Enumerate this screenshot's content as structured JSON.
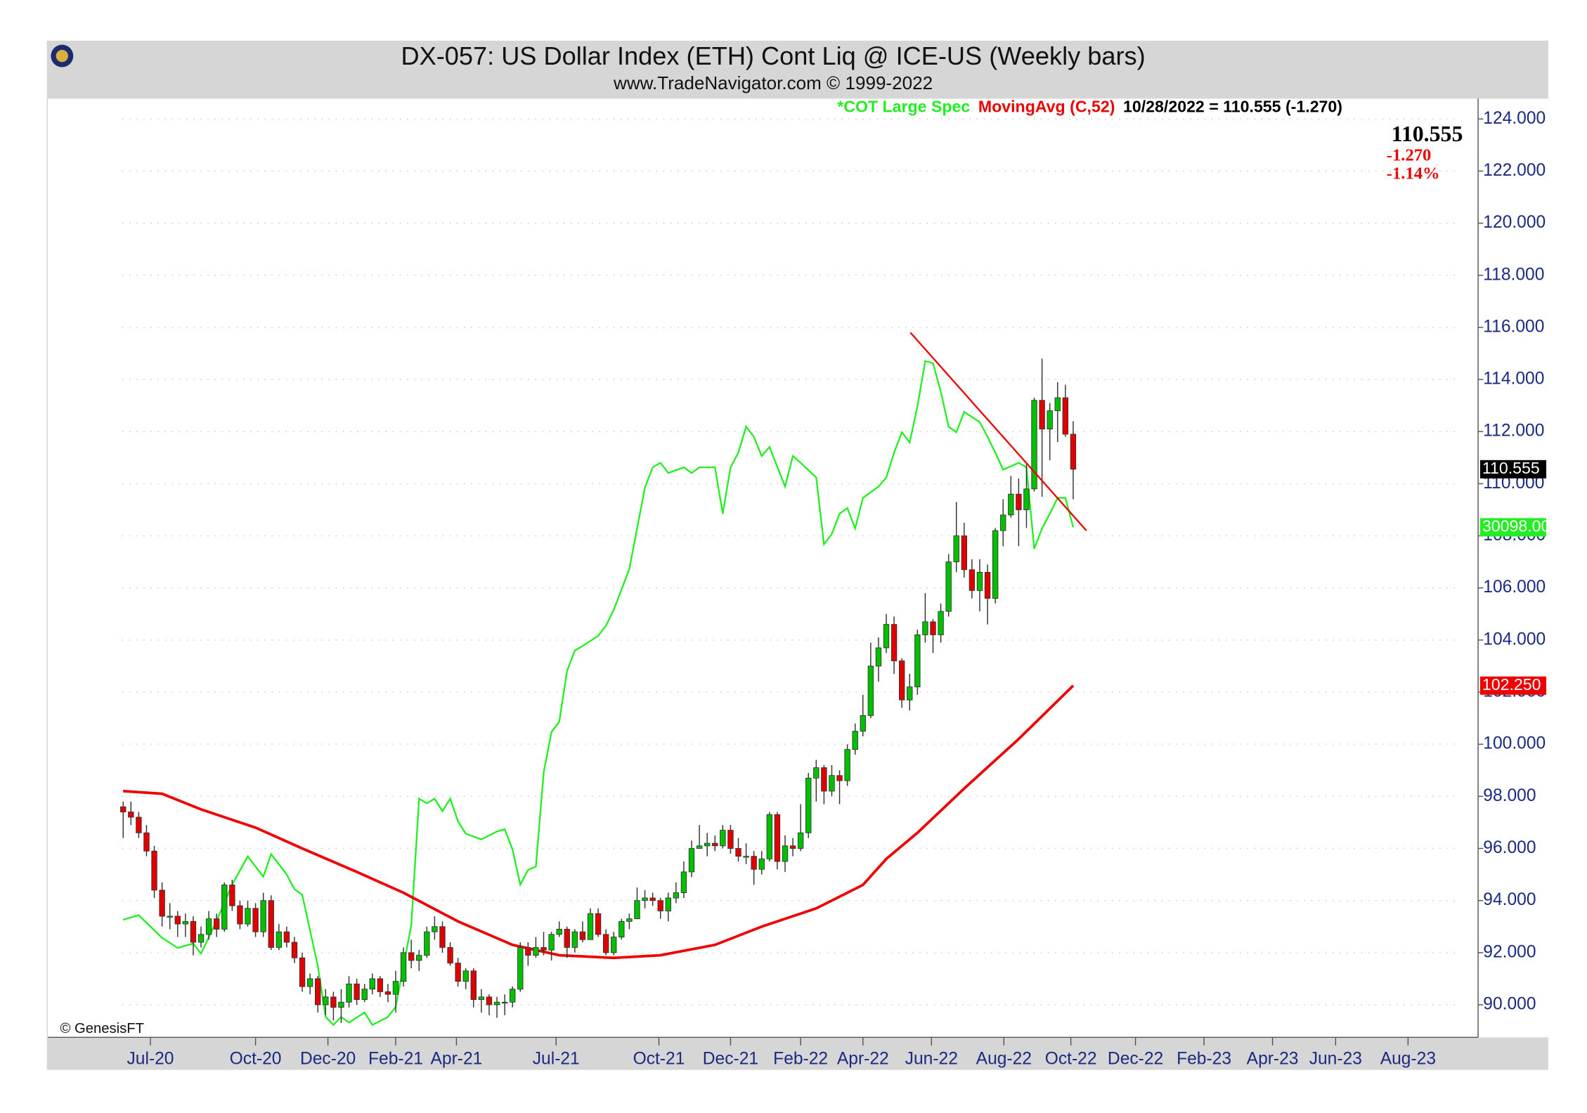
{
  "chart_data": {
    "type": "candlestick",
    "title": "DX-057:  US Dollar Index (ETH) Cont Liq @ ICE-US  (Weekly bars)",
    "subtitle": "www.TradeNavigator.com © 1999-2022",
    "legend_text": "10/28/2022 = 110.555 (-1.270)",
    "info": {
      "last": "110.555",
      "change": "-1.270",
      "percent": "-1.14%"
    },
    "price_boxes": {
      "close": "110.555",
      "cot": "30098.000",
      "ma": "102.250"
    },
    "credit": "© GenesisFT",
    "up_color": "#00c000",
    "down_color": "#e00000",
    "grid": true,
    "xlim": [
      -9.67,
      174
    ],
    "xticks": [
      {
        "value": 3.5,
        "label": "Jul-20"
      },
      {
        "value": 17,
        "label": "Oct-20"
      },
      {
        "value": 26.3,
        "label": "Dec-20"
      },
      {
        "value": 35,
        "label": "Feb-21"
      },
      {
        "value": 42.8,
        "label": "Apr-21"
      },
      {
        "value": 55.6,
        "label": "Jul-21"
      },
      {
        "value": 68.8,
        "label": "Oct-21"
      },
      {
        "value": 78,
        "label": "Dec-21"
      },
      {
        "value": 87,
        "label": "Feb-22"
      },
      {
        "value": 95,
        "label": "Apr-22"
      },
      {
        "value": 103.8,
        "label": "Jun-22"
      },
      {
        "value": 113.1,
        "label": "Aug-22"
      },
      {
        "value": 121.7,
        "label": "Oct-22"
      },
      {
        "value": 130,
        "label": "Dec-22"
      },
      {
        "value": 138.8,
        "label": "Feb-23"
      },
      {
        "value": 147.6,
        "label": "Apr-23"
      },
      {
        "value": 155.7,
        "label": "Jun-23"
      },
      {
        "value": 165,
        "label": "Aug-23"
      }
    ],
    "ylim": [
      88.75,
      124.78
    ],
    "yticks": [
      {
        "value": 90,
        "label": "90.000"
      },
      {
        "value": 92,
        "label": "92.000"
      },
      {
        "value": 94,
        "label": "94.000"
      },
      {
        "value": 96,
        "label": "96.000"
      },
      {
        "value": 98,
        "label": "98.000"
      },
      {
        "value": 100,
        "label": "100.000"
      },
      {
        "value": 102,
        "label": "102.000"
      },
      {
        "value": 104,
        "label": "104.000"
      },
      {
        "value": 106,
        "label": "106.000"
      },
      {
        "value": 108,
        "label": "108.000"
      },
      {
        "value": 110,
        "label": "110.000"
      },
      {
        "value": 112,
        "label": "112.000"
      },
      {
        "value": 114,
        "label": "114.000"
      },
      {
        "value": 116,
        "label": "116.000"
      },
      {
        "value": 118,
        "label": "118.000"
      },
      {
        "value": 120,
        "label": "120.000"
      },
      {
        "value": 122,
        "label": "122.000"
      },
      {
        "value": 124,
        "label": "124.000"
      }
    ],
    "y2lim": [
      -15000,
      68000
    ],
    "open": [
      97.6,
      97.4,
      97.2,
      96.6,
      95.9,
      94.4,
      93.4,
      93.4,
      93.1,
      93.2,
      92.4,
      92.7,
      93.3,
      92.9,
      94.6,
      93.8,
      93.1,
      93.7,
      92.8,
      94.0,
      92.2,
      92.8,
      92.4,
      91.8,
      90.7,
      91.0,
      90.0,
      90.3,
      89.9,
      90.1,
      90.8,
      90.2,
      90.6,
      91.0,
      90.5,
      90.4,
      90.9,
      92.0,
      91.7,
      91.9,
      92.8,
      93.0,
      92.2,
      91.6,
      90.9,
      91.3,
      90.2,
      90.3,
      90.0,
      90.1,
      90.1,
      90.6,
      92.2,
      91.9,
      92.2,
      92.1,
      92.7,
      92.9,
      92.2,
      92.8,
      92.5,
      93.5,
      92.7,
      92.0,
      92.6,
      93.2,
      93.3,
      94.0,
      94.1,
      94.0,
      93.6,
      94.1,
      94.3,
      95.1,
      96.0,
      96.1,
      96.2,
      96.1,
      96.7,
      96.0,
      95.7,
      95.7,
      95.2,
      95.6,
      97.3,
      95.5,
      96.1,
      96.0,
      96.6,
      98.7,
      99.1,
      98.2,
      98.8,
      98.6,
      99.8,
      100.5,
      101.1,
      103.0,
      103.7,
      104.6,
      103.2,
      101.7,
      102.2,
      104.2,
      104.7,
      104.2,
      105.1,
      107.0,
      108.0,
      106.7,
      105.9,
      106.6,
      105.6,
      108.2,
      108.8,
      109.6,
      109.0,
      109.8,
      113.2,
      112.1,
      112.8,
      113.3,
      111.9
    ],
    "high": [
      97.8,
      97.8,
      97.4,
      96.9,
      96.1,
      94.7,
      93.9,
      93.6,
      93.5,
      93.4,
      93.0,
      93.6,
      93.5,
      94.7,
      94.8,
      94.0,
      94.0,
      93.9,
      94.3,
      94.2,
      93.1,
      93.0,
      92.6,
      92.0,
      91.2,
      91.1,
      90.6,
      90.5,
      90.6,
      91.1,
      91.0,
      90.8,
      91.2,
      91.1,
      90.8,
      91.3,
      92.2,
      92.5,
      92.1,
      93.0,
      93.4,
      93.2,
      92.4,
      91.8,
      91.4,
      91.4,
      90.6,
      90.4,
      90.3,
      90.4,
      90.7,
      92.4,
      92.4,
      92.6,
      92.8,
      92.8,
      93.2,
      93.0,
      92.9,
      93.2,
      93.7,
      93.7,
      92.9,
      92.8,
      93.3,
      93.5,
      94.5,
      94.4,
      94.3,
      94.1,
      94.3,
      94.7,
      95.5,
      96.3,
      96.9,
      96.6,
      96.5,
      96.9,
      96.9,
      96.4,
      96.2,
      95.9,
      95.9,
      97.4,
      97.4,
      96.5,
      96.4,
      97.7,
      98.9,
      99.4,
      99.2,
      99.2,
      99.0,
      100.0,
      100.8,
      101.9,
      103.9,
      104.1,
      105.0,
      104.9,
      103.3,
      102.7,
      104.4,
      105.8,
      104.8,
      105.4,
      107.3,
      109.3,
      108.5,
      107.1,
      107.1,
      106.9,
      108.3,
      109.4,
      110.3,
      110.2,
      110.8,
      113.3,
      114.8,
      113.1,
      113.9,
      113.8,
      112.4
    ],
    "low": [
      96.4,
      96.9,
      96.4,
      95.7,
      94.1,
      93.0,
      92.9,
      92.6,
      92.6,
      91.9,
      92.2,
      92.5,
      92.6,
      92.8,
      93.6,
      92.9,
      93.0,
      92.6,
      92.6,
      92.1,
      92.1,
      92.2,
      91.6,
      90.5,
      90.4,
      89.7,
      89.6,
      89.4,
      89.3,
      89.9,
      90.0,
      90.1,
      90.4,
      90.3,
      90.1,
      89.7,
      90.7,
      91.4,
      91.3,
      91.8,
      92.5,
      92.0,
      91.5,
      90.7,
      90.6,
      89.9,
      89.7,
      89.6,
      89.5,
      89.6,
      89.9,
      90.5,
      91.5,
      91.8,
      91.9,
      91.7,
      92.6,
      91.8,
      92.0,
      92.4,
      92.5,
      92.6,
      91.9,
      91.9,
      92.5,
      92.9,
      93.3,
      93.7,
      93.8,
      93.3,
      93.2,
      93.9,
      94.1,
      94.9,
      96.0,
      95.7,
      95.9,
      96.0,
      95.8,
      95.5,
      95.4,
      94.6,
      95.0,
      95.5,
      95.2,
      95.1,
      95.7,
      95.9,
      96.4,
      97.8,
      97.7,
      98.0,
      97.7,
      98.4,
      99.6,
      100.3,
      101.0,
      102.4,
      103.5,
      102.7,
      101.4,
      101.3,
      101.9,
      103.9,
      103.5,
      103.9,
      104.9,
      106.6,
      106.4,
      105.6,
      105.1,
      104.6,
      105.4,
      107.6,
      108.7,
      107.6,
      108.3,
      109.7,
      109.5,
      110.9,
      111.6,
      111.8,
      109.4
    ],
    "close": [
      97.4,
      97.2,
      96.6,
      95.9,
      94.4,
      93.4,
      93.4,
      93.1,
      93.2,
      92.4,
      92.7,
      93.3,
      92.9,
      94.6,
      93.8,
      93.1,
      93.7,
      92.8,
      94.0,
      92.2,
      92.8,
      92.4,
      91.8,
      90.7,
      91.0,
      90.0,
      90.3,
      89.9,
      90.1,
      90.8,
      90.2,
      90.6,
      91.0,
      90.5,
      90.4,
      90.9,
      92.0,
      91.7,
      91.9,
      92.8,
      93.0,
      92.2,
      91.6,
      90.9,
      91.3,
      90.2,
      90.3,
      90.0,
      90.1,
      90.1,
      90.6,
      92.2,
      91.9,
      92.2,
      92.1,
      92.7,
      92.9,
      92.2,
      92.8,
      92.5,
      93.5,
      92.7,
      92.0,
      92.6,
      93.2,
      93.3,
      94.0,
      94.1,
      94.0,
      93.6,
      94.1,
      94.3,
      95.1,
      96.0,
      96.1,
      96.2,
      96.1,
      96.7,
      96.0,
      95.7,
      95.7,
      95.2,
      95.6,
      97.3,
      95.5,
      96.1,
      96.0,
      96.6,
      98.7,
      99.1,
      98.2,
      98.8,
      98.6,
      99.8,
      100.5,
      101.1,
      103.0,
      103.7,
      104.6,
      103.2,
      101.7,
      102.2,
      104.2,
      104.7,
      104.2,
      105.1,
      107.0,
      108.0,
      106.7,
      105.9,
      106.6,
      105.6,
      108.2,
      108.8,
      109.6,
      109.0,
      109.8,
      113.2,
      112.1,
      112.8,
      113.3,
      111.9,
      110.555
    ],
    "series": [
      {
        "name": "*COT Large Spec",
        "color": "#22ee22",
        "axis": "y2",
        "x": [
          0,
          2,
          5,
          7,
          9,
          10,
          12,
          14,
          16,
          18,
          19,
          21,
          22,
          23,
          25,
          26,
          27,
          28,
          29,
          31,
          32,
          34,
          35,
          37,
          38,
          39,
          40,
          41,
          42,
          43,
          44,
          46,
          48,
          49,
          50,
          51,
          52,
          53,
          54,
          55,
          56,
          57,
          58,
          59,
          61,
          62,
          63,
          64,
          65,
          66,
          67,
          68,
          69,
          70,
          72,
          73,
          74,
          76,
          77,
          78,
          79,
          80,
          81,
          82,
          83,
          85,
          86,
          87,
          89,
          90,
          91,
          92,
          93,
          94,
          95,
          97,
          98,
          99,
          100,
          101,
          102,
          103,
          104,
          105,
          106,
          107,
          108,
          110,
          111,
          112,
          113,
          114,
          115,
          116,
          117,
          118,
          119,
          120,
          121,
          122
        ],
        "values": [
          -4600,
          -4200,
          -6200,
          -7100,
          -6700,
          -7600,
          -4700,
          -1500,
          1000,
          -800,
          1200,
          -600,
          -1900,
          -2400,
          -8700,
          -13200,
          -13900,
          -13200,
          -13700,
          -12800,
          -13900,
          -13200,
          -12300,
          -5100,
          6100,
          5700,
          6100,
          5000,
          6100,
          4100,
          3000,
          2500,
          3200,
          3400,
          1600,
          -1500,
          -200,
          100,
          8400,
          12000,
          12900,
          17400,
          19200,
          19600,
          20500,
          21400,
          22800,
          24600,
          26400,
          30000,
          33600,
          35400,
          35800,
          34900,
          35400,
          34900,
          35400,
          35400,
          31300,
          35400,
          36700,
          39000,
          38100,
          36400,
          37200,
          33700,
          36400,
          35800,
          34500,
          28600,
          29500,
          31300,
          31800,
          30000,
          32700,
          33700,
          34500,
          36700,
          38500,
          37600,
          40800,
          44800,
          44600,
          42100,
          39000,
          38500,
          40300,
          39400,
          38100,
          36700,
          35200,
          35500,
          35800,
          35400,
          28200,
          30000,
          31300,
          32700,
          32700,
          30098
        ]
      },
      {
        "name": "MovingAvg (C,52)",
        "color": "#ee0000",
        "x": [
          0,
          5,
          10,
          17,
          23,
          30,
          36,
          43,
          50,
          56,
          63,
          69,
          76,
          82,
          89,
          95,
          98,
          102,
          108,
          115,
          122
        ],
        "values": [
          98.2,
          98.1,
          97.5,
          96.8,
          96.0,
          95.1,
          94.3,
          93.2,
          92.3,
          91.9,
          91.8,
          91.9,
          92.3,
          93.0,
          93.7,
          94.6,
          95.6,
          96.6,
          98.3,
          100.2,
          102.25
        ]
      }
    ],
    "trendline": {
      "color": "#ee0000",
      "x": [
        101.1,
        123.7
      ],
      "values": [
        115.8,
        108.2
      ]
    }
  }
}
